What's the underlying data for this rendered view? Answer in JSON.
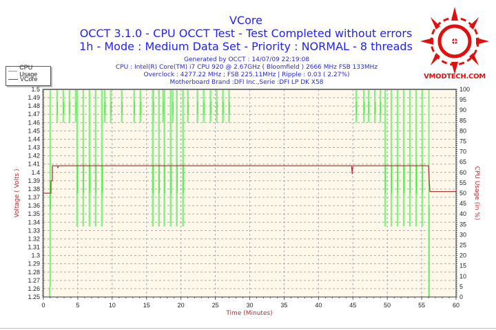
{
  "header": {
    "title": "VCore",
    "line2": "OCCT 3.1.0 - CPU OCCT Test - Test Completed without errors",
    "line3": "1h - Mode : Medium Data Set - Priority : NORMAL - 8 threads",
    "generated": "Generated by OCCT : 14/07/09 22:19:08",
    "cpu": "CPU : Intel(R) Core(TM) i7 CPU 920 @ 2.67GHz ( Bloomfield ) 2666 MHz FSB 133MHz",
    "overclock": "Overclock : 4277.22 MHz ; FSB 225.11MHz | Ripple : 0.03 ( 2.27%)",
    "motherboard": "Motherboard Brand :DFI Inc.,Serie :DFI LP DK X58"
  },
  "logo": {
    "text": "VMODTECH.COM",
    "color": "#e01010"
  },
  "legend": [
    {
      "label": "CPU Usage",
      "color": "#33dd33"
    },
    {
      "label": "VCore",
      "color": "#b03030"
    }
  ],
  "colors": {
    "plot_bg": "#fdf8ea",
    "cpu": "#33ee33",
    "cpu_light": "#88f088",
    "vcore": "#b03a3a",
    "title": "#1f1fff",
    "axis_label": "#b03030",
    "grid": "#aaaaaa"
  },
  "chart_data": {
    "type": "line",
    "title": "VCore",
    "xlabel": "Time (Minutes)",
    "ylabel": "Voltage ( Volts )",
    "y2label": "CPU Usage (in %)",
    "xlim": [
      0,
      60
    ],
    "ylim": [
      1.25,
      1.5
    ],
    "y2lim": [
      0,
      100
    ],
    "x_ticks": [
      0,
      5,
      10,
      15,
      20,
      25,
      30,
      35,
      40,
      45,
      50,
      55,
      60
    ],
    "y_ticks": [
      "1.5",
      "1.49",
      "1.48",
      "1.47",
      "1.46",
      "1.45",
      "1.44",
      "1.43",
      "1.42",
      "1.41",
      "1.4",
      "1.39",
      "1.38",
      "1.37",
      "1.36",
      "1.35",
      "1.34",
      "1.33",
      "1.32",
      "1.31",
      "1.3",
      "1.29",
      "1.28",
      "1.27",
      "1.26",
      "1.25"
    ],
    "y2_ticks": [
      "100",
      "95",
      "90",
      "85",
      "80",
      "75",
      "70",
      "65",
      "60",
      "55",
      "50",
      "45",
      "40",
      "35",
      "30",
      "25",
      "20",
      "15",
      "10",
      "5",
      "0"
    ],
    "grid": true,
    "legend_position": "top-left outside",
    "series": [
      {
        "name": "VCore",
        "axis": "left",
        "x": [
          0,
          1.1,
          1.1,
          1.3,
          1.3,
          2.0,
          2.1,
          2.2,
          44.8,
          44.9,
          45.0,
          56.0,
          56.1,
          56.2,
          60
        ],
        "values": [
          1.375,
          1.375,
          1.39,
          1.39,
          1.408,
          1.408,
          1.406,
          1.408,
          1.408,
          1.398,
          1.408,
          1.408,
          1.39,
          1.377,
          1.377
        ]
      },
      {
        "name": "CPU Usage",
        "axis": "right",
        "base": 100,
        "start": {
          "x": [
            0,
            0.9,
            1.1
          ],
          "values": [
            0,
            5,
            100
          ]
        },
        "end": {
          "x": [
            56.0,
            56.1
          ],
          "values": [
            100,
            0
          ]
        },
        "dips_shallow_to_84": [
          2.0,
          2.9,
          3.8,
          4.7,
          8.9,
          9.8,
          11.4,
          13.2,
          14.1,
          16.0,
          17.4,
          18.8,
          21.0,
          22.4,
          23.3,
          24.3,
          25.2,
          26.1,
          27.0,
          45.5,
          46.6,
          47.3,
          48.2,
          49.0
        ],
        "dips_deep_to_34": [
          4.9,
          5.8,
          6.7,
          7.6,
          8.5,
          15.9,
          16.8,
          17.6,
          18.5,
          19.4,
          20.3,
          49.7,
          50.6,
          51.5,
          52.4,
          53.3,
          54.2,
          55.1
        ]
      }
    ]
  }
}
